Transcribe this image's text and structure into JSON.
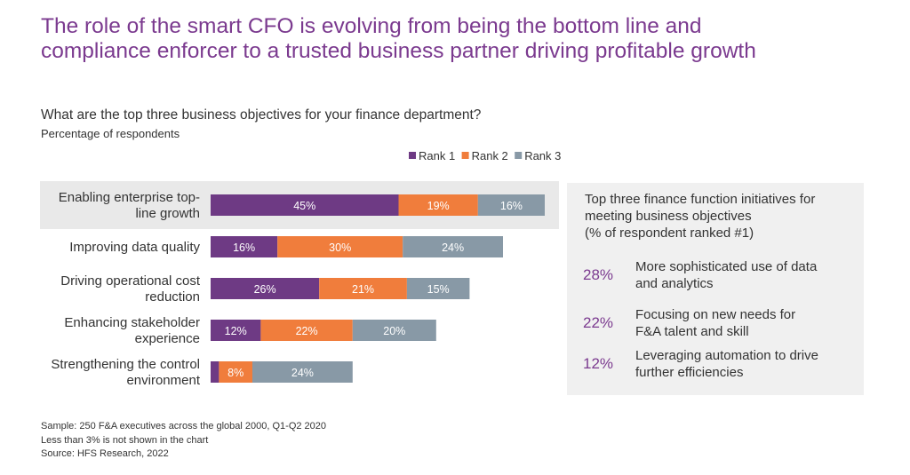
{
  "title": {
    "line1": "The role of the smart CFO is evolving from being the bottom line and",
    "line2": "compliance enforcer to a trusted business partner driving profitable growth"
  },
  "question": "What are the top three business objectives for your finance department?",
  "unit_label": "Percentage of respondents",
  "chart_data": {
    "type": "bar",
    "orientation": "horizontal",
    "stacked": true,
    "title": "What are the top three business objectives for your finance department?",
    "subtitle": "Percentage of respondents",
    "legend_position": "top-right",
    "categories": [
      [
        "Enabling enterprise top-",
        "line growth"
      ],
      [
        "Improving data quality"
      ],
      [
        "Driving operational cost",
        "reduction"
      ],
      [
        "Enhancing stakeholder",
        "experience"
      ],
      [
        "Strengthening the control",
        "environment"
      ]
    ],
    "series": [
      {
        "name": "Rank 1",
        "color": "#6e3a84",
        "values": [
          45,
          16,
          26,
          12,
          2
        ],
        "labels": [
          "45%",
          "16%",
          "26%",
          "12%",
          ""
        ]
      },
      {
        "name": "Rank 2",
        "color": "#f07d3c",
        "values": [
          19,
          30,
          21,
          22,
          8
        ],
        "labels": [
          "19%",
          "30%",
          "21%",
          "22%",
          "8%"
        ]
      },
      {
        "name": "Rank 3",
        "color": "#8899a6",
        "values": [
          16,
          24,
          15,
          20,
          24
        ],
        "labels": [
          "16%",
          "24%",
          "15%",
          "20%",
          "24%"
        ]
      }
    ],
    "highlighted_category_index": 0,
    "xlim": [
      0,
      80
    ]
  },
  "side_panel": {
    "heading": [
      "Top three finance function initiatives for",
      "meeting business objectives",
      "(% of respondent ranked #1)"
    ],
    "items": [
      {
        "pct": "28%",
        "text": [
          "More sophisticated use of data",
          "and analytics"
        ]
      },
      {
        "pct": "22%",
        "text": [
          "Focusing on new needs for",
          "F&A talent and skill"
        ]
      },
      {
        "pct": "12%",
        "text": [
          "Leveraging automation to drive",
          "further efficiencies"
        ]
      }
    ]
  },
  "footnotes": {
    "sample": "Sample: 250 F&A executives  across the global 2000, Q1-Q2 2020",
    "note": "Less than 3% is not shown in the chart",
    "source": "Source: HFS Research, 2022"
  }
}
